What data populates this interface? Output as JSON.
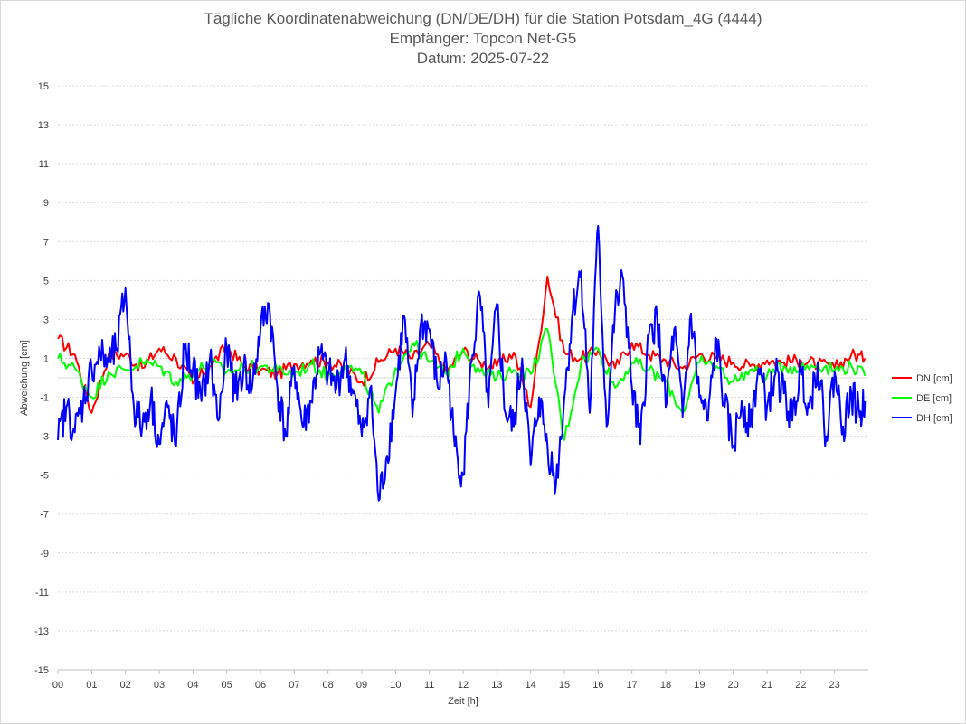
{
  "chart_data": {
    "type": "line",
    "title": "Tägliche Koordinatenabweichung (DN/DE/DH) für die Station Potsdam_4G (4444)",
    "subtitle_1": "Empfänger: Topcon Net-G5",
    "subtitle_2": "Datum: 2025-07-22",
    "xlabel": "Zeit [h]",
    "ylabel": "Abweichung [cm]",
    "xlim": [
      0,
      24
    ],
    "ylim": [
      -15,
      15
    ],
    "x_ticks": [
      "00",
      "01",
      "02",
      "03",
      "04",
      "05",
      "06",
      "07",
      "08",
      "09",
      "10",
      "11",
      "12",
      "13",
      "14",
      "15",
      "16",
      "17",
      "18",
      "19",
      "20",
      "21",
      "22",
      "23"
    ],
    "y_ticks": [
      "15",
      "13",
      "11",
      "9",
      "7",
      "5",
      "3",
      "1",
      "-1",
      "-3",
      "-5",
      "-7",
      "-9",
      "-11",
      "-13",
      "-15"
    ],
    "grid": "horizontal-dotted",
    "legend_position": "right",
    "colors": {
      "DN": "#ff0000",
      "DE": "#00ff00",
      "DH": "#0000ff"
    },
    "series": [
      {
        "name": "DN [cm]",
        "color": "#ff0000",
        "x": [
          0,
          0.5,
          1,
          1.5,
          2,
          2.5,
          3,
          3.5,
          4,
          4.5,
          5,
          5.5,
          6,
          6.5,
          7,
          7.5,
          8,
          8.5,
          9,
          9.5,
          10,
          10.5,
          11,
          11.5,
          12,
          12.5,
          13,
          13.5,
          14,
          14.5,
          15,
          15.5,
          16,
          16.5,
          17,
          17.5,
          18,
          18.5,
          19,
          19.5,
          20,
          20.5,
          21,
          21.5,
          22,
          22.5,
          23,
          23.5,
          23.9
        ],
        "y": [
          2.0,
          1.2,
          -1.8,
          1.2,
          1.2,
          0.5,
          1.5,
          1.0,
          -0.3,
          0.6,
          1.6,
          0.6,
          0.4,
          0.2,
          0.7,
          0.9,
          0.8,
          0.5,
          -0.2,
          0.8,
          1.5,
          1.0,
          1.7,
          0.3,
          1.4,
          0.8,
          0.6,
          1.3,
          -1.5,
          5.2,
          1.3,
          1.0,
          1.4,
          0.5,
          1.8,
          1.2,
          0.9,
          0.5,
          1.2,
          1.0,
          0.8,
          0.6,
          0.9,
          0.8,
          0.9,
          0.7,
          0.5,
          1.2,
          1.0
        ]
      },
      {
        "name": "DE [cm]",
        "color": "#00ff00",
        "x": [
          0,
          0.5,
          1,
          1.5,
          2,
          2.5,
          3,
          3.5,
          4,
          4.5,
          5,
          5.5,
          6,
          6.5,
          7,
          7.5,
          8,
          8.5,
          9,
          9.5,
          10,
          10.5,
          11,
          11.5,
          12,
          12.5,
          13,
          13.5,
          14,
          14.5,
          15,
          15.5,
          16,
          16.5,
          17,
          17.5,
          18,
          18.5,
          19,
          19.5,
          20,
          20.5,
          21,
          21.5,
          22,
          22.5,
          23,
          23.5,
          23.9
        ],
        "y": [
          1.0,
          0.5,
          -1.0,
          0.3,
          0.4,
          0.8,
          0.6,
          -0.2,
          0.2,
          0.8,
          0.3,
          0.5,
          0.6,
          0.4,
          0.2,
          0.7,
          0.1,
          0.6,
          0.2,
          -1.8,
          0.5,
          1.8,
          0.8,
          0.2,
          1.5,
          0.3,
          0.0,
          0.4,
          0.2,
          2.5,
          -3.2,
          0.8,
          1.5,
          -0.5,
          0.8,
          0.4,
          -0.2,
          -1.8,
          0.8,
          0.6,
          -0.2,
          0.4,
          0.1,
          0.6,
          0.5,
          0.7,
          0.4,
          0.6,
          0.1
        ]
      },
      {
        "name": "DH [cm]",
        "color": "#0000ff",
        "x": [
          0,
          0.25,
          0.5,
          0.75,
          1,
          1.25,
          1.5,
          1.75,
          2,
          2.25,
          2.5,
          2.75,
          3,
          3.25,
          3.5,
          3.75,
          4,
          4.25,
          4.5,
          4.75,
          5,
          5.25,
          5.5,
          5.75,
          6,
          6.25,
          6.5,
          6.75,
          7,
          7.25,
          7.5,
          7.75,
          8,
          8.25,
          8.5,
          8.75,
          9,
          9.25,
          9.5,
          9.75,
          10,
          10.25,
          10.5,
          10.75,
          11,
          11.25,
          11.5,
          11.75,
          12,
          12.25,
          12.5,
          12.75,
          13,
          13.25,
          13.5,
          13.75,
          14,
          14.25,
          14.5,
          14.75,
          15,
          15.25,
          15.5,
          15.75,
          16,
          16.25,
          16.5,
          16.75,
          17,
          17.25,
          17.5,
          17.75,
          18,
          18.25,
          18.5,
          18.75,
          19,
          19.25,
          19.5,
          19.75,
          20,
          20.25,
          20.5,
          20.75,
          21,
          21.25,
          21.5,
          21.75,
          22,
          22.25,
          22.5,
          22.75,
          23,
          23.25,
          23.5,
          23.75,
          23.9
        ],
        "y": [
          -3.2,
          -1.5,
          -2.8,
          -1.2,
          0.5,
          1.2,
          0.8,
          1.5,
          4.6,
          -1.5,
          -2.5,
          -1.0,
          -3.4,
          -1.5,
          -3.5,
          1.5,
          0.5,
          -1.2,
          1.0,
          -2.2,
          1.5,
          -0.8,
          0.5,
          -0.5,
          2.5,
          3.8,
          -0.5,
          -3.0,
          0.6,
          -2.5,
          -1.2,
          1.2,
          0.2,
          -0.5,
          1.0,
          -0.8,
          -3.0,
          -0.5,
          -6.3,
          -4.0,
          -0.8,
          3.2,
          -2.0,
          2.8,
          2.5,
          -0.5,
          1.0,
          -3.5,
          -5.0,
          0.8,
          4.2,
          -1.5,
          3.8,
          -1.8,
          -2.5,
          1.0,
          -4.5,
          -1.0,
          -3.5,
          -5.5,
          -1.0,
          3.5,
          5.5,
          -1.8,
          7.8,
          -2.5,
          3.5,
          5.0,
          -0.5,
          -3.4,
          2.2,
          3.0,
          -1.5,
          2.5,
          -2.0,
          3.3,
          -1.0,
          -2.2,
          2.0,
          -1.5,
          -3.5,
          -1.2,
          -2.5,
          0.5,
          -1.5,
          0.2,
          -0.8,
          -2.2,
          0.5,
          -1.5,
          0.8,
          -3.0,
          0.3,
          -2.5,
          -0.8,
          -2.0,
          -1.2
        ]
      }
    ]
  }
}
